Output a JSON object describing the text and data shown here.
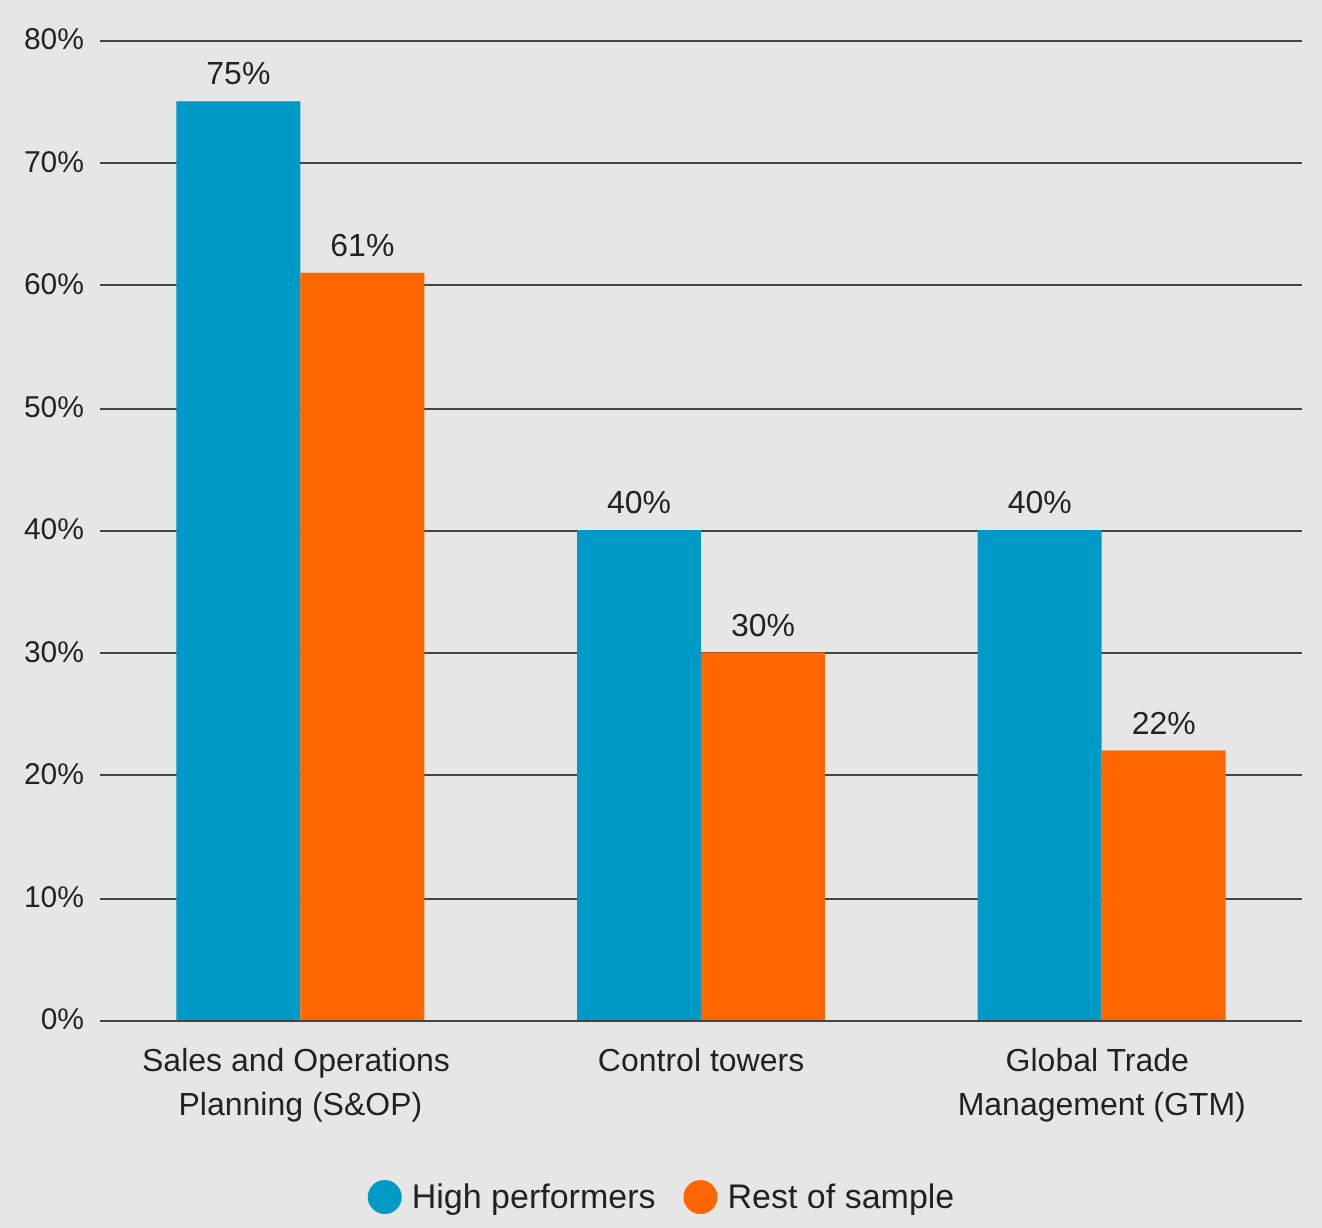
{
  "chart_data": {
    "type": "bar",
    "categories": [
      "Sales and Operations Planning (S&OP)",
      "Control towers",
      "Global Trade Management (GTM)"
    ],
    "series": [
      {
        "name": "High performers",
        "color": "#009ac7",
        "values": [
          75,
          40,
          40
        ],
        "value_labels": [
          "75%",
          "40%",
          "40%"
        ]
      },
      {
        "name": "Rest of sample",
        "color": "#ff6600",
        "values": [
          61,
          30,
          22
        ],
        "value_labels": [
          "61%",
          "30%",
          "22%"
        ]
      }
    ],
    "ylim": [
      0,
      80
    ],
    "yticks": [
      {
        "value": 0,
        "label": "0%"
      },
      {
        "value": 10,
        "label": "10%"
      },
      {
        "value": 20,
        "label": "20%"
      },
      {
        "value": 30,
        "label": "30%"
      },
      {
        "value": 40,
        "label": "40%"
      },
      {
        "value": 50,
        "label": "50%"
      },
      {
        "value": 60,
        "label": "60%"
      },
      {
        "value": 70,
        "label": "70%"
      },
      {
        "value": 80,
        "label": "80%"
      }
    ],
    "grid": "y",
    "legend": "bottom"
  }
}
